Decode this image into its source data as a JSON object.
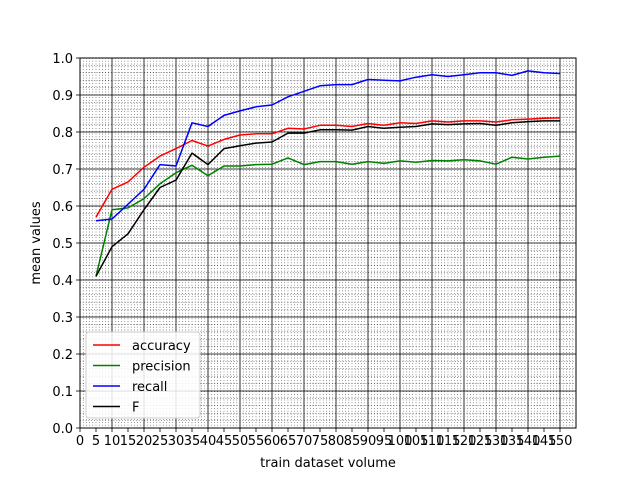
{
  "chart_data": {
    "type": "line",
    "xlabel": "train dataset volume",
    "ylabel": "mean values",
    "xlim": [
      0,
      155
    ],
    "ylim": [
      0.0,
      1.0
    ],
    "xticks": [
      0,
      5,
      10,
      15,
      20,
      25,
      30,
      35,
      40,
      45,
      50,
      55,
      60,
      65,
      70,
      75,
      80,
      85,
      90,
      95,
      100,
      105,
      110,
      115,
      120,
      125,
      130,
      135,
      140,
      145,
      150
    ],
    "xtick_labels": [
      "0",
      "5",
      "10",
      "15",
      "20",
      "25",
      "30",
      "35",
      "40",
      "45",
      "50",
      "55",
      "60",
      "65",
      "70",
      "75",
      "80",
      "85",
      "90",
      "95",
      "100",
      "105",
      "110",
      "115",
      "120",
      "125",
      "130",
      "135",
      "140",
      "145",
      "150"
    ],
    "yticks": [
      0.0,
      0.1,
      0.2,
      0.3,
      0.4,
      0.5,
      0.6,
      0.7,
      0.8,
      0.9,
      1.0
    ],
    "ytick_labels": [
      "0.0",
      "0.1",
      "0.2",
      "0.3",
      "0.4",
      "0.5",
      "0.6",
      "0.7",
      "0.8",
      "0.9",
      "1.0"
    ],
    "grid": "major and minor",
    "legend_position": "lower-left",
    "x": [
      5,
      10,
      15,
      20,
      25,
      30,
      35,
      40,
      45,
      50,
      55,
      60,
      65,
      70,
      75,
      80,
      85,
      90,
      95,
      100,
      105,
      110,
      115,
      120,
      125,
      130,
      135,
      140,
      145,
      150
    ],
    "series": [
      {
        "name": "accuracy",
        "color": "#ff0000",
        "values": [
          0.57,
          0.645,
          0.665,
          0.705,
          0.735,
          0.755,
          0.777,
          0.762,
          0.78,
          0.792,
          0.795,
          0.795,
          0.81,
          0.808,
          0.818,
          0.818,
          0.815,
          0.823,
          0.818,
          0.825,
          0.823,
          0.83,
          0.827,
          0.83,
          0.83,
          0.827,
          0.833,
          0.835,
          0.837,
          0.838
        ]
      },
      {
        "name": "precision",
        "color": "#008000",
        "values": [
          0.41,
          0.59,
          0.595,
          0.62,
          0.66,
          0.69,
          0.71,
          0.682,
          0.708,
          0.708,
          0.712,
          0.713,
          0.73,
          0.712,
          0.72,
          0.72,
          0.713,
          0.72,
          0.715,
          0.722,
          0.718,
          0.723,
          0.722,
          0.725,
          0.722,
          0.713,
          0.732,
          0.727,
          0.732,
          0.735
        ]
      },
      {
        "name": "recall",
        "color": "#0000ff",
        "values": [
          0.56,
          0.565,
          0.605,
          0.645,
          0.712,
          0.708,
          0.825,
          0.815,
          0.845,
          0.857,
          0.868,
          0.873,
          0.895,
          0.91,
          0.925,
          0.928,
          0.928,
          0.942,
          0.94,
          0.938,
          0.948,
          0.955,
          0.95,
          0.955,
          0.96,
          0.96,
          0.953,
          0.965,
          0.96,
          0.958
        ]
      },
      {
        "name": "F",
        "color": "#000000",
        "values": [
          0.41,
          0.49,
          0.525,
          0.59,
          0.65,
          0.67,
          0.743,
          0.712,
          0.755,
          0.763,
          0.77,
          0.773,
          0.797,
          0.797,
          0.806,
          0.806,
          0.805,
          0.815,
          0.81,
          0.813,
          0.815,
          0.822,
          0.82,
          0.822,
          0.823,
          0.818,
          0.825,
          0.828,
          0.83,
          0.83
        ]
      }
    ]
  }
}
